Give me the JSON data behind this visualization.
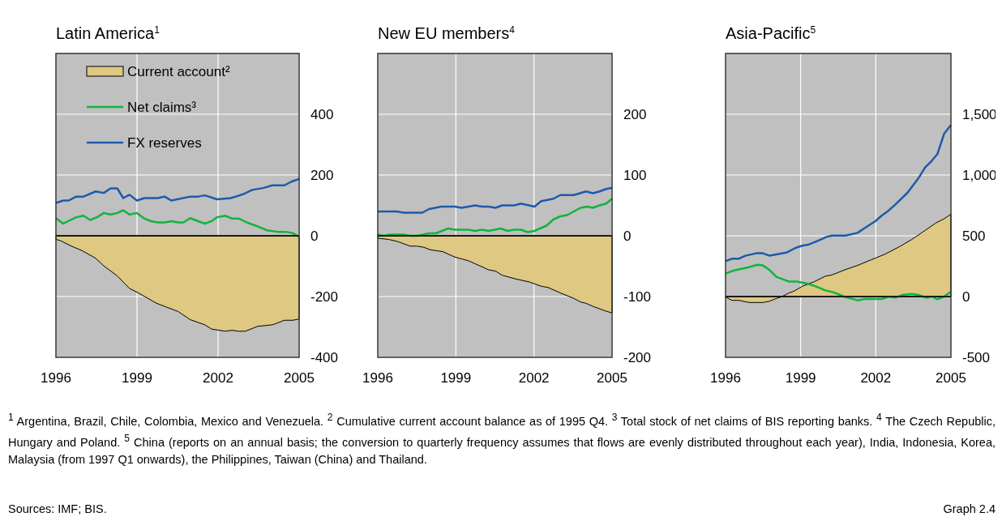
{
  "chart_data": [
    {
      "type": "line",
      "title": "Latin America$^{1}$",
      "xlim": [
        1996,
        2005
      ],
      "xticks": [
        1996,
        1999,
        2002,
        2005
      ],
      "ylim": [
        -400,
        600
      ],
      "yticks": [
        -400,
        -200,
        0,
        200,
        400
      ],
      "grid": true,
      "legend": "top left",
      "ref_lines": [
        {
          "axis": "y",
          "value": 0,
          "color": "#000000"
        }
      ],
      "annotations": [
        "$^{1}$ Argentina, Brazil, Chile, Colombia, Mexico and Venezuela.  $^{2}$ Cumulative current account balance as of 1995 Q4.  $^{3}$ Total stock of net claims of BIS reporting banks.  $^{4}$ The Czech Republic, Hungary and Poland.  $^{5}$ China (reports on an annual basis; the conversion to quarterly frequency assumes that flows are evenly distributed throughout each year), India, Indonesia, Korea, Malaysia (from 1997 Q1 onwards), the Philippines, Taiwan (China) and Thailand.",
        "Sources: IMF; BIS.",
        "Graph 2.4"
      ],
      "series": [
        {
          "name": "Current account²",
          "type": "area",
          "color": "#dec882",
          "x": [
            1996,
            1996.17,
            1996.57,
            1996.97,
            1997.47,
            1997.77,
            1998.27,
            1998.72,
            1999.07,
            1999.72,
            2000.07,
            2000.52,
            2000.97,
            2001.51,
            2001.76,
            2002.26,
            2002.51,
            2002.76,
            2003.01,
            2003.46,
            2004.01,
            2004.46,
            2004.76,
            2005
          ],
          "values": [
            -12,
            -16,
            -34,
            -49,
            -74,
            -99,
            -132,
            -173,
            -189,
            -222,
            -234,
            -249,
            -276,
            -293,
            -307,
            -314,
            -311,
            -314,
            -314,
            -298,
            -293,
            -278,
            -278,
            -274
          ]
        },
        {
          "name": "Net claims³",
          "color": "#10b43c",
          "x": [
            1996,
            1996.27,
            1996.75,
            1997.02,
            1997.27,
            1997.52,
            1997.77,
            1998.02,
            1998.27,
            1998.49,
            1998.72,
            1999,
            1999.27,
            1999.52,
            1999.77,
            2000.02,
            2000.27,
            2000.52,
            2000.72,
            2000.97,
            2001.26,
            2001.51,
            2001.76,
            2001.96,
            2002.26,
            2002.51,
            2002.76,
            2003.06,
            2003.46,
            2003.81,
            2004.21,
            2004.51,
            2004.76,
            2005
          ],
          "values": [
            58,
            40,
            61,
            66,
            52,
            61,
            75,
            70,
            75,
            84,
            70,
            75,
            57,
            48,
            44,
            44,
            48,
            44,
            44,
            58,
            48,
            40,
            48,
            61,
            66,
            57,
            57,
            44,
            31,
            18,
            13,
            13,
            9,
            -4
          ]
        },
        {
          "name": "FX reserves",
          "color": "#1d5aab",
          "x": [
            1996,
            1996.27,
            1996.47,
            1996.75,
            1997.02,
            1997.47,
            1997.77,
            1998.02,
            1998.27,
            1998.49,
            1998.72,
            1999,
            1999.27,
            1999.77,
            2000.02,
            2000.27,
            2000.97,
            2001.26,
            2001.51,
            2001.96,
            2002.46,
            2002.66,
            2002.96,
            2003.26,
            2003.66,
            2004.01,
            2004.46,
            2004.71,
            2005
          ],
          "values": [
            108,
            116,
            116,
            129,
            129,
            146,
            141,
            156,
            156,
            124,
            135,
            116,
            124,
            124,
            129,
            116,
            129,
            129,
            133,
            120,
            124,
            129,
            138,
            151,
            157,
            166,
            166,
            178,
            187
          ]
        }
      ]
    },
    {
      "type": "line",
      "title": "New EU members$^{4}$",
      "xlim": [
        1996,
        2005
      ],
      "xticks": [
        1996,
        1999,
        2002,
        2005
      ],
      "ylim": [
        -200,
        300
      ],
      "yticks": [
        -200,
        -100,
        0,
        100,
        200
      ],
      "grid": true,
      "ref_lines": [
        {
          "axis": "y",
          "value": 0,
          "color": "#000000"
        }
      ],
      "series": [
        {
          "type": "area",
          "color": "#dec882",
          "x": [
            1996,
            1996.42,
            1996.73,
            1997.25,
            1997.51,
            1997.77,
            1998.02,
            1998.49,
            1998.96,
            1999.22,
            1999.48,
            1999.74,
            2000.26,
            2000.52,
            2000.78,
            2001.3,
            2001.82,
            2002.28,
            2002.54,
            2003.01,
            2003.53,
            2003.79,
            2003.99,
            2004.26,
            2004.77,
            2005
          ],
          "values": [
            -4,
            -6,
            -9,
            -17,
            -17,
            -19,
            -23,
            -26,
            -35,
            -38,
            -41,
            -46,
            -56,
            -58,
            -65,
            -71,
            -76,
            -83,
            -85,
            -94,
            -103,
            -109,
            -111,
            -116,
            -124,
            -127
          ]
        },
        {
          "color": "#10b43c",
          "x": [
            1996,
            1996.21,
            1996.47,
            1996.99,
            1997.25,
            1997.51,
            1997.97,
            1998.23,
            1998.7,
            1998.96,
            1999.48,
            1999.74,
            2000,
            2000.26,
            2000.72,
            2000.98,
            2001.24,
            2001.5,
            2001.76,
            2002.02,
            2002.49,
            2002.75,
            2003.01,
            2003.27,
            2003.53,
            2003.79,
            2004.05,
            2004.26,
            2004.52,
            2004.77,
            2005
          ],
          "values": [
            2,
            0,
            2,
            2,
            0,
            0,
            4,
            4,
            12,
            10,
            10,
            8,
            10,
            8,
            12,
            8,
            10,
            10,
            6,
            8,
            17,
            27,
            32,
            34,
            40,
            46,
            48,
            46,
            50,
            53,
            61
          ]
        },
        {
          "color": "#1d5aab",
          "x": [
            1996,
            1996.73,
            1996.99,
            1997.71,
            1997.97,
            1998.44,
            1998.96,
            1999.22,
            1999.74,
            2000,
            2000.26,
            2000.52,
            2000.78,
            2001.24,
            2001.5,
            2002.02,
            2002.28,
            2002.75,
            2003.01,
            2003.53,
            2004,
            2004.26,
            2004.52,
            2004.77,
            2005
          ],
          "values": [
            40,
            40,
            38,
            38,
            44,
            48,
            48,
            46,
            50,
            48,
            48,
            46,
            50,
            50,
            53,
            48,
            57,
            61,
            67,
            67,
            73,
            70,
            73,
            77,
            79
          ]
        }
      ]
    },
    {
      "type": "line",
      "title": "Asia-Pacific$^{5}$",
      "xlim": [
        1996,
        2005
      ],
      "xticks": [
        1996,
        1999,
        2002,
        2005
      ],
      "ylim": [
        -500,
        2000
      ],
      "yticks": [
        -500,
        0,
        500,
        {
          "value": 1000,
          "label": "1,000"
        },
        {
          "value": 1500,
          "label": "1,500"
        }
      ],
      "grid": true,
      "ref_lines": [
        {
          "axis": "y",
          "value": 0,
          "color": "#000000"
        }
      ],
      "series": [
        {
          "type": "area",
          "color": "#dec882",
          "x": [
            1996,
            1996.25,
            1996.52,
            1996.95,
            1997.49,
            1997.76,
            1998.03,
            1998.25,
            1998.52,
            1998.73,
            1999.06,
            1999.54,
            1999.98,
            2000.25,
            2000.79,
            2001.27,
            2001.81,
            2002.35,
            2002.95,
            2003.43,
            2003.97,
            2004.41,
            2004.73,
            2005
          ],
          "values": [
            -4,
            -31,
            -31,
            -49,
            -49,
            -38,
            -16,
            0,
            29,
            44,
            84,
            122,
            167,
            178,
            222,
            256,
            302,
            347,
            411,
            469,
            544,
            607,
            640,
            678
          ]
        },
        {
          "color": "#10b43c",
          "x": [
            1996,
            1996.3,
            1996.9,
            1997.27,
            1997.49,
            1997.76,
            1998.03,
            1998.52,
            1998.84,
            1999.27,
            1999.6,
            1999.98,
            2000.3,
            2000.73,
            2001.27,
            2001.54,
            2002.24,
            2002.51,
            2002.78,
            2003.05,
            2003.43,
            2003.7,
            2004.03,
            2004.24,
            2004.46,
            2004.73,
            2005
          ],
          "values": [
            189,
            213,
            240,
            262,
            256,
            218,
            162,
            124,
            124,
            107,
            84,
            51,
            36,
            0,
            -31,
            -20,
            -20,
            0,
            -9,
            13,
            22,
            13,
            -11,
            0,
            -22,
            0,
            40
          ]
        },
        {
          "color": "#1d5aab",
          "x": [
            1996,
            1996.25,
            1996.52,
            1996.79,
            1997.22,
            1997.49,
            1997.76,
            1998.46,
            1998.79,
            1999.06,
            1999.33,
            1999.65,
            2000.03,
            2000.25,
            2000.79,
            2001.27,
            2001.54,
            2001.97,
            2002.24,
            2002.51,
            2002.78,
            2003.27,
            2003.7,
            2003.97,
            2004.24,
            2004.46,
            2004.73,
            2005
          ],
          "values": [
            291,
            311,
            311,
            336,
            356,
            356,
            336,
            364,
            400,
            418,
            429,
            456,
            491,
            502,
            502,
            524,
            562,
            618,
            667,
            707,
            758,
            855,
            973,
            1062,
            1118,
            1173,
            1340,
            1411
          ]
        }
      ]
    }
  ]
}
